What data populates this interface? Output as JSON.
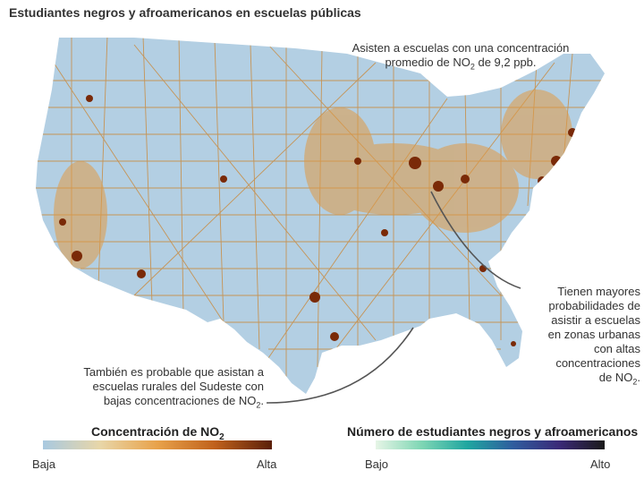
{
  "title": "Estudiantes negros y afroamericanos en escuelas públicas",
  "annotations": {
    "top_line1": "Asisten a escuelas con una concentración",
    "top_line2_pre": "promedio de NO",
    "top_line2_sub": "2",
    "top_line2_post": " de 9,2 ppb.",
    "right_lines": [
      "Tienen mayores",
      "probabilidades de",
      "asistir a escuelas",
      "en zonas urbanas",
      "con altas",
      "concentraciones"
    ],
    "right_last_pre": "de NO",
    "right_last_sub": "2",
    "right_last_post": ".",
    "left_line1": "También es probable que asistan a",
    "left_line2": "escuelas rurales del Sudeste con",
    "left_line3_pre": "bajas concentraciones de NO",
    "left_line3_sub": "2",
    "left_line3_post": "."
  },
  "legend_no2": {
    "title_pre": "Concentración de NO",
    "title_sub": "2",
    "low": "Baja",
    "high": "Alta",
    "colors": [
      "#a9c9e0",
      "#e8d6a8",
      "#e8a24a",
      "#c0611c",
      "#5a1f08"
    ]
  },
  "legend_students": {
    "title": "Número de estudiantes negros y afroamericanos",
    "low": "Bajo",
    "high": "Alto",
    "colors": [
      "#e6f5e6",
      "#7fd6b4",
      "#1fa6a0",
      "#2f5d9e",
      "#3b2a78",
      "#1a1a1a"
    ]
  },
  "map_colors": {
    "land": "#b3cfe3",
    "roads": "#c98a3e",
    "urban_high": "#7a2a08",
    "urban_mid": "#e09a45"
  }
}
